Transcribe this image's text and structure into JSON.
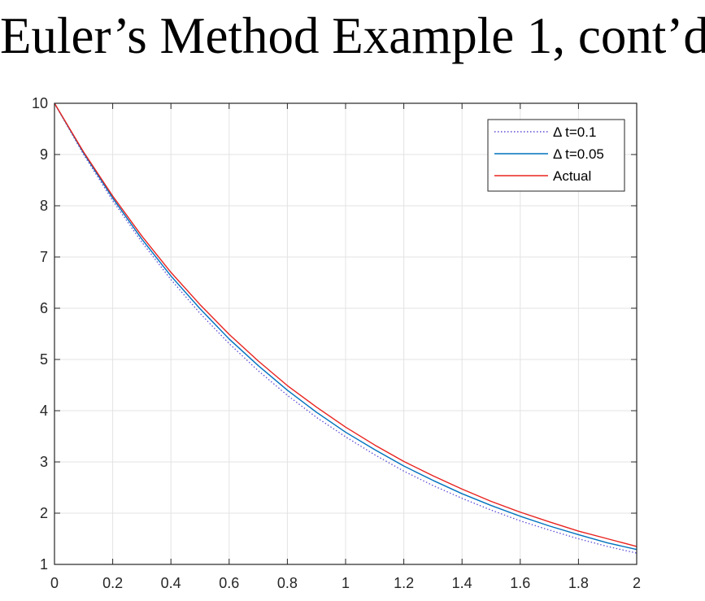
{
  "slide": {
    "title": "Euler’s Method Example 1, cont’d"
  },
  "chart_data": {
    "type": "line",
    "title": "",
    "xlabel": "",
    "ylabel": "",
    "xlim": [
      0,
      2
    ],
    "ylim": [
      1,
      10
    ],
    "xticks": [
      0,
      0.2,
      0.4,
      0.6,
      0.8,
      1,
      1.2,
      1.4,
      1.6,
      1.8,
      2
    ],
    "xtick_labels": [
      "0",
      "0.2",
      "0.4",
      "0.6",
      "0.8",
      "1",
      "1.2",
      "1.4",
      "1.6",
      "1.8",
      "2"
    ],
    "yticks": [
      1,
      2,
      3,
      4,
      5,
      6,
      7,
      8,
      9,
      10
    ],
    "ytick_labels": [
      "1",
      "2",
      "3",
      "4",
      "5",
      "6",
      "7",
      "8",
      "9",
      "10"
    ],
    "grid": true,
    "legend_position": "top-right",
    "series": [
      {
        "name": "Δ t=0.1",
        "color": "#5b4bd6",
        "style": "dotted",
        "x": [
          0,
          0.1,
          0.2,
          0.3,
          0.4,
          0.5,
          0.6,
          0.7,
          0.8,
          0.9,
          1.0,
          1.1,
          1.2,
          1.3,
          1.4,
          1.5,
          1.6,
          1.7,
          1.8,
          1.9,
          2.0
        ],
        "y": [
          10,
          9.0,
          8.1,
          7.29,
          6.56,
          5.9,
          5.31,
          4.78,
          4.3,
          3.87,
          3.49,
          3.14,
          2.82,
          2.54,
          2.29,
          2.06,
          1.85,
          1.67,
          1.5,
          1.35,
          1.22
        ]
      },
      {
        "name": "Δ t=0.05",
        "color": "#0072bd",
        "style": "solid",
        "x": [
          0,
          0.1,
          0.2,
          0.3,
          0.4,
          0.5,
          0.6,
          0.7,
          0.8,
          0.9,
          1.0,
          1.1,
          1.2,
          1.3,
          1.4,
          1.5,
          1.6,
          1.7,
          1.8,
          1.9,
          2.0
        ],
        "y": [
          10,
          9.03,
          8.15,
          7.35,
          6.63,
          5.99,
          5.4,
          4.88,
          4.4,
          3.97,
          3.58,
          3.24,
          2.92,
          2.64,
          2.38,
          2.15,
          1.94,
          1.75,
          1.58,
          1.42,
          1.29
        ]
      },
      {
        "name": "Actual",
        "color": "#e8231f",
        "style": "solid",
        "x": [
          0,
          0.1,
          0.2,
          0.3,
          0.4,
          0.5,
          0.6,
          0.7,
          0.8,
          0.9,
          1.0,
          1.1,
          1.2,
          1.3,
          1.4,
          1.5,
          1.6,
          1.7,
          1.8,
          1.9,
          2.0
        ],
        "y": [
          10,
          9.05,
          8.19,
          7.41,
          6.7,
          6.07,
          5.49,
          4.97,
          4.49,
          4.07,
          3.68,
          3.33,
          3.01,
          2.73,
          2.47,
          2.23,
          2.02,
          1.83,
          1.65,
          1.5,
          1.35
        ]
      }
    ]
  }
}
